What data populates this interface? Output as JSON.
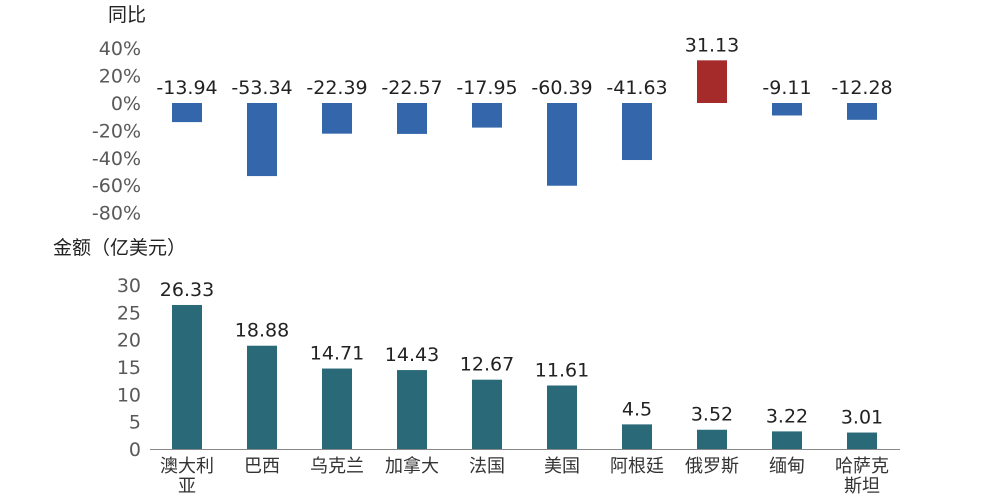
{
  "chart_data": [
    {
      "type": "bar",
      "title": "同比",
      "categories": [
        "澳大利亚",
        "巴西",
        "乌克兰",
        "加拿大",
        "法国",
        "美国",
        "阿根廷",
        "俄罗斯",
        "缅甸",
        "哈萨克斯坦"
      ],
      "values": [
        -13.94,
        -53.34,
        -22.39,
        -22.57,
        -17.95,
        -60.39,
        -41.63,
        31.13,
        -9.11,
        -12.28
      ],
      "value_labels": [
        "-13.94",
        "-53.34",
        "-22.39",
        "-22.57",
        "-17.95",
        "-60.39",
        "-41.63",
        "31.13",
        "-9.11",
        "-12.28"
      ],
      "yticks": [
        "40%",
        "20%",
        "0%",
        "-20%",
        "-40%",
        "-60%",
        "-80%"
      ],
      "ytick_values": [
        40,
        20,
        0,
        -20,
        -40,
        -60,
        -80
      ],
      "ylim": [
        -80,
        40
      ],
      "colors": {
        "negative": "#3366aa",
        "positive": "#a52a2a"
      },
      "grid": false
    },
    {
      "type": "bar",
      "title": "金额（亿美元）",
      "categories": [
        "澳大利亚",
        "巴西",
        "乌克兰",
        "加拿大",
        "法国",
        "美国",
        "阿根廷",
        "俄罗斯",
        "缅甸",
        "哈萨克斯坦"
      ],
      "category_lines": [
        [
          "澳大利",
          "亚"
        ],
        [
          "巴西"
        ],
        [
          "乌克兰"
        ],
        [
          "加拿大"
        ],
        [
          "法国"
        ],
        [
          "美国"
        ],
        [
          "阿根廷"
        ],
        [
          "俄罗斯"
        ],
        [
          "缅甸"
        ],
        [
          "哈萨克",
          "斯坦"
        ]
      ],
      "values": [
        26.33,
        18.88,
        14.71,
        14.43,
        12.67,
        11.61,
        4.5,
        3.52,
        3.22,
        3.01
      ],
      "value_labels": [
        "26.33",
        "18.88",
        "14.71",
        "14.43",
        "12.67",
        "11.61",
        "4.5",
        "3.52",
        "3.22",
        "3.01"
      ],
      "yticks": [
        "30",
        "25",
        "20",
        "15",
        "10",
        "5",
        "0"
      ],
      "ytick_values": [
        30,
        25,
        20,
        15,
        10,
        5,
        0
      ],
      "ylim": [
        0,
        30
      ],
      "colors": {
        "bar": "#2a6a78",
        "axis": "#888888"
      },
      "grid": false
    }
  ]
}
